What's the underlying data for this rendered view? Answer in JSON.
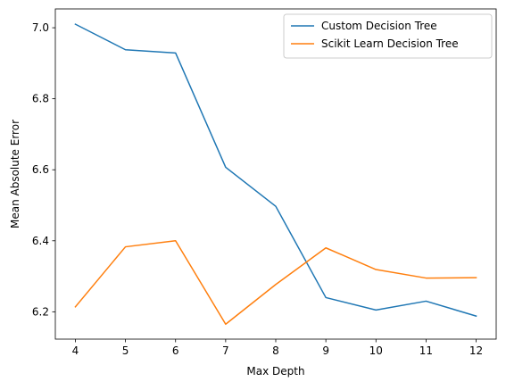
{
  "chart_data": {
    "type": "line",
    "title": "",
    "xlabel": "Max Depth",
    "ylabel": "Mean Absolute Error",
    "x": [
      4,
      5,
      6,
      7,
      8,
      9,
      10,
      11,
      12
    ],
    "series": [
      {
        "name": "Custom Decision Tree",
        "color": "#1f77b4",
        "values": [
          7.01,
          6.938,
          6.929,
          6.607,
          6.497,
          6.24,
          6.205,
          6.23,
          6.188
        ]
      },
      {
        "name": "Scikit Learn Decision Tree",
        "color": "#ff7f0e",
        "values": [
          6.214,
          6.383,
          6.4,
          6.165,
          6.277,
          6.38,
          6.319,
          6.295,
          6.296
        ]
      }
    ],
    "xticks": [
      "4",
      "5",
      "6",
      "7",
      "8",
      "9",
      "10",
      "11",
      "12"
    ],
    "yticks": [
      "6.2",
      "6.4",
      "6.6",
      "6.8",
      "7.0"
    ],
    "xlim": [
      3.6,
      12.4
    ],
    "ylim": [
      6.123,
      7.053
    ],
    "grid": false,
    "legend_position": "top-right"
  }
}
